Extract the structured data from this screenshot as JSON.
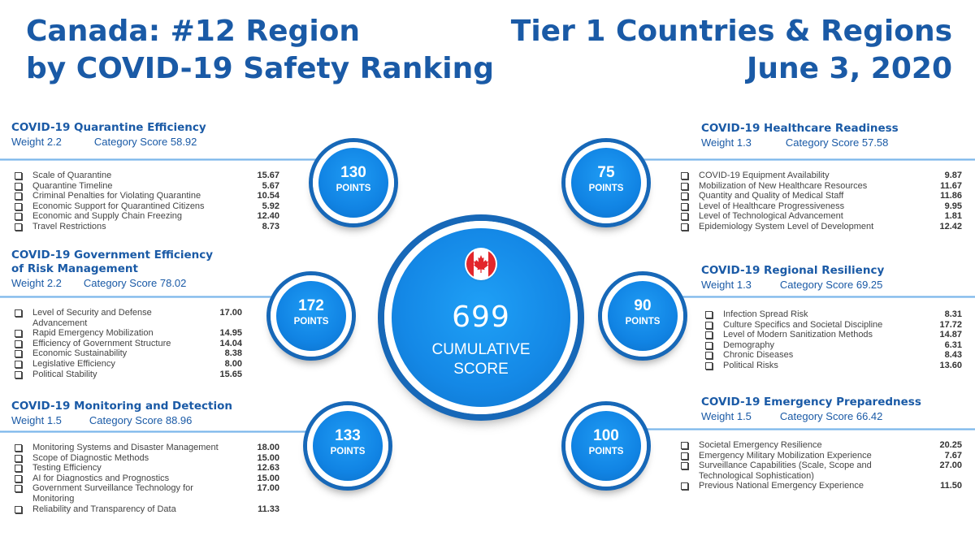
{
  "title_left": [
    "Canada: #12 Region",
    "by COVID-19 Safety Ranking"
  ],
  "title_right": [
    "Tier 1 Countries & Regions",
    "June 3, 2020"
  ],
  "center": {
    "score": "699",
    "label_line1": "CUMULATIVE",
    "label_line2": "SCORE",
    "flag_icon": "canada-flag-icon",
    "colors": {
      "red": "#e3262b",
      "blue": "#1488e6",
      "dark_blue": "#1768b8"
    }
  },
  "categories": {
    "quarantine": {
      "title": "COVID-19 Quarantine Efficiency",
      "weight": "Weight 2.2",
      "score": "Category Score 58.92",
      "points": "130",
      "points_label": "POINTS",
      "items": [
        {
          "label": "Scale of Quarantine",
          "value": "15.67"
        },
        {
          "label": "Quarantine Timeline",
          "value": "5.67"
        },
        {
          "label": "Criminal Penalties for Violating Quarantine",
          "value": "10.54"
        },
        {
          "label": "Economic Support for Quarantined Citizens",
          "value": "5.92"
        },
        {
          "label": "Economic and Supply Chain Freezing",
          "value": "12.40"
        },
        {
          "label": "Travel Restrictions",
          "value": "8.73"
        }
      ]
    },
    "government": {
      "title_line1": "COVID-19 Government Efficiency",
      "title_line2": "of Risk Management",
      "weight": "Weight 2.2",
      "score": "Category Score 78.02",
      "points": "172",
      "points_label": "POINTS",
      "items": [
        {
          "label": "Level of Security and Defense",
          "label2": "Advancement",
          "value": "17.00"
        },
        {
          "label": "Rapid Emergency Mobilization",
          "value": "14.95"
        },
        {
          "label": "Efficiency of Government Structure",
          "value": "14.04"
        },
        {
          "label": "Economic Sustainability",
          "value": "8.38"
        },
        {
          "label": "Legislative Efficiency",
          "value": "8.00"
        },
        {
          "label": "Political Stability",
          "value": "15.65"
        }
      ]
    },
    "monitoring": {
      "title": "COVID-19 Monitoring and Detection",
      "weight": "Weight 1.5",
      "score": "Category Score 88.96",
      "points": "133",
      "points_label": "POINTS",
      "items": [
        {
          "label": "Monitoring Systems and Disaster Management",
          "value": "18.00"
        },
        {
          "label": "Scope of Diagnostic Methods",
          "value": "15.00"
        },
        {
          "label": "Testing Efficiency",
          "value": "12.63"
        },
        {
          "label": "AI for Diagnostics and Prognostics",
          "value": "15.00"
        },
        {
          "label": "Government Surveillance Technology for",
          "label2": "Monitoring",
          "value": "17.00"
        },
        {
          "label": "Reliability and Transparency of Data",
          "value": "11.33"
        }
      ]
    },
    "healthcare": {
      "title": "COVID-19 Healthcare Readiness",
      "weight": "Weight 1.3",
      "score": "Category Score 57.58",
      "points": "75",
      "points_label": "POINTS",
      "items": [
        {
          "label": "COVID-19 Equipment Availability",
          "value": "9.87"
        },
        {
          "label": "Mobilization of New Healthcare Resources",
          "value": "11.67"
        },
        {
          "label": "Quantity and Quality of Medical Staff",
          "value": "11.86"
        },
        {
          "label": "Level of Healthcare Progressiveness",
          "value": "9.95"
        },
        {
          "label": "Level of Technological Advancement",
          "value": "1.81"
        },
        {
          "label": "Epidemiology System Level of Development",
          "value": "12.42"
        }
      ]
    },
    "regional": {
      "title": "COVID-19 Regional Resiliency",
      "weight": "Weight 1.3",
      "score": "Category Score 69.25",
      "points": "90",
      "points_label": "POINTS",
      "items": [
        {
          "label": "Infection Spread Risk",
          "value": "8.31"
        },
        {
          "label": "Culture Specifics and Societal Discipline",
          "value": "17.72"
        },
        {
          "label": "Level of Modern Sanitization Methods",
          "value": "14.87"
        },
        {
          "label": "Demography",
          "value": "6.31"
        },
        {
          "label": "Chronic Diseases",
          "value": "8.43"
        },
        {
          "label": "Political Risks",
          "value": "13.60"
        }
      ]
    },
    "emergency": {
      "title": "COVID-19 Emergency Preparedness",
      "weight": "Weight 1.5",
      "score": "Category Score 66.42",
      "points": "100",
      "points_label": "POINTS",
      "items": [
        {
          "label": "Societal Emergency Resilience",
          "value": "20.25"
        },
        {
          "label": "Emergency Military Mobilization Experience",
          "value": "7.67"
        },
        {
          "label": "Surveillance Capabilities (Scale, Scope and",
          "label2": "Technological Sophistication)",
          "value": "27.00"
        },
        {
          "label": "Previous National Emergency Experience",
          "value": "11.50"
        }
      ]
    }
  }
}
